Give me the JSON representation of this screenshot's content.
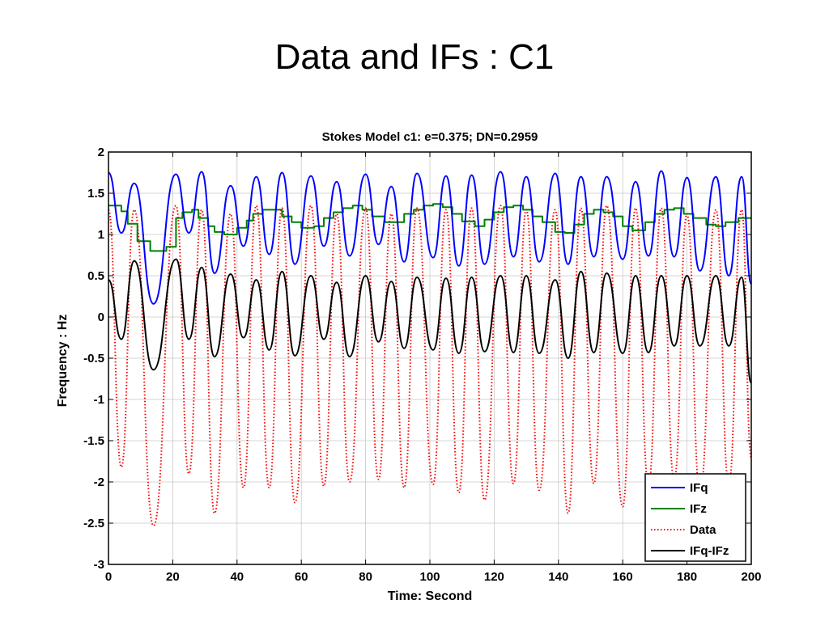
{
  "slide": {
    "title": "Data and IFs : C1"
  },
  "chart_data": {
    "type": "line",
    "title": "Stokes Model c1:  e=0.375;  DN=0.2959",
    "xlabel": "Time: Second",
    "ylabel": "Frequency : Hz",
    "xlim": [
      0,
      200
    ],
    "ylim": [
      -3,
      2
    ],
    "xticks": [
      0,
      20,
      40,
      60,
      80,
      100,
      120,
      140,
      160,
      180,
      200
    ],
    "yticks": [
      -3,
      -2.5,
      -2,
      -1.5,
      -1,
      -0.5,
      0,
      0.5,
      1,
      1.5,
      2
    ],
    "ytick_labels": [
      "-3",
      "-2.5",
      "-2",
      "-1.5",
      "-1",
      "-0.5",
      "0",
      "0.5",
      "1",
      "1.5",
      "2"
    ],
    "grid": true,
    "legend_position": "bottom-right",
    "series": [
      {
        "name": "IFq",
        "color": "#0000ff",
        "style": "solid",
        "x": [
          0,
          4,
          8,
          14,
          21,
          25,
          29,
          33,
          38,
          42,
          46,
          50,
          54,
          58,
          63,
          67,
          71,
          75,
          80,
          84,
          88,
          92,
          96,
          101,
          105,
          109,
          113,
          117,
          122,
          126,
          130,
          134,
          139,
          143,
          147,
          151,
          155,
          160,
          164,
          168,
          172,
          176,
          180,
          184,
          189,
          193,
          197,
          200
        ],
        "y": [
          1.75,
          1.02,
          1.62,
          0.16,
          1.73,
          1.02,
          1.76,
          0.53,
          1.59,
          0.86,
          1.7,
          0.76,
          1.75,
          0.64,
          1.71,
          0.86,
          1.64,
          0.74,
          1.73,
          0.88,
          1.58,
          0.67,
          1.74,
          0.72,
          1.71,
          0.62,
          1.72,
          0.64,
          1.76,
          0.73,
          1.7,
          0.67,
          1.74,
          0.64,
          1.7,
          0.73,
          1.7,
          0.7,
          1.64,
          0.74,
          1.77,
          0.73,
          1.69,
          0.56,
          1.7,
          0.5,
          1.7,
          0.4
        ]
      },
      {
        "name": "IFz",
        "color": "#008000",
        "style": "step",
        "x": [
          0,
          4,
          6,
          9,
          13,
          18,
          21,
          23,
          26,
          28,
          31,
          33,
          36,
          40,
          43,
          45,
          48,
          51,
          54,
          57,
          60,
          64,
          67,
          70,
          73,
          76,
          79,
          82,
          86,
          89,
          92,
          95,
          98,
          101,
          104,
          107,
          110,
          114,
          117,
          120,
          123,
          126,
          129,
          132,
          135,
          139,
          142,
          145,
          148,
          151,
          154,
          157,
          160,
          163,
          167,
          170,
          173,
          176,
          179,
          182,
          186,
          189,
          192,
          196,
          200
        ],
        "y": [
          1.35,
          1.28,
          1.13,
          0.92,
          0.8,
          0.85,
          1.2,
          1.27,
          1.3,
          1.2,
          1.1,
          1.03,
          1.0,
          1.08,
          1.17,
          1.25,
          1.3,
          1.3,
          1.22,
          1.15,
          1.08,
          1.1,
          1.2,
          1.27,
          1.32,
          1.35,
          1.3,
          1.22,
          1.15,
          1.15,
          1.25,
          1.3,
          1.35,
          1.37,
          1.33,
          1.25,
          1.16,
          1.1,
          1.18,
          1.27,
          1.33,
          1.35,
          1.3,
          1.22,
          1.15,
          1.03,
          1.02,
          1.12,
          1.25,
          1.3,
          1.27,
          1.22,
          1.1,
          1.05,
          1.15,
          1.25,
          1.3,
          1.32,
          1.25,
          1.2,
          1.12,
          1.1,
          1.15,
          1.2,
          1.2
        ]
      },
      {
        "name": "Data",
        "color": "#ff0000",
        "style": "dotted",
        "x": [
          0,
          4,
          8,
          14,
          21,
          25,
          29,
          33,
          38,
          42,
          46,
          50,
          54,
          58,
          63,
          67,
          71,
          75,
          80,
          84,
          88,
          92,
          96,
          101,
          105,
          109,
          113,
          117,
          122,
          126,
          130,
          134,
          139,
          143,
          147,
          151,
          155,
          160,
          164,
          168,
          172,
          176,
          180,
          184,
          189,
          193,
          197,
          200
        ],
        "y": [
          1.3,
          -1.82,
          1.3,
          -2.53,
          1.35,
          -1.9,
          1.3,
          -2.38,
          1.25,
          -2.07,
          1.35,
          -2.07,
          1.32,
          -2.25,
          1.35,
          -2.05,
          1.25,
          -2.0,
          1.32,
          -1.97,
          1.25,
          -2.07,
          1.32,
          -2.03,
          1.3,
          -2.13,
          1.32,
          -2.22,
          1.35,
          -2.02,
          1.3,
          -2.1,
          1.3,
          -2.38,
          1.32,
          -2.02,
          1.35,
          -2.3,
          1.32,
          -2.05,
          1.32,
          -1.98,
          1.25,
          -2.13,
          1.3,
          -2.03,
          1.3,
          -1.7
        ]
      },
      {
        "name": "IFq-IFz",
        "color": "#000000",
        "style": "solid",
        "x": [
          0,
          4,
          8,
          14,
          21,
          25,
          29,
          33,
          38,
          42,
          46,
          50,
          54,
          58,
          63,
          67,
          71,
          75,
          80,
          84,
          88,
          92,
          96,
          101,
          105,
          109,
          113,
          117,
          122,
          126,
          130,
          134,
          139,
          143,
          147,
          151,
          155,
          160,
          164,
          168,
          172,
          176,
          180,
          184,
          189,
          193,
          197,
          200
        ],
        "y": [
          0.45,
          -0.27,
          0.68,
          -0.64,
          0.7,
          -0.27,
          0.6,
          -0.48,
          0.52,
          -0.25,
          0.45,
          -0.4,
          0.55,
          -0.47,
          0.5,
          -0.27,
          0.42,
          -0.48,
          0.5,
          -0.3,
          0.43,
          -0.38,
          0.48,
          -0.4,
          0.47,
          -0.44,
          0.48,
          -0.42,
          0.5,
          -0.43,
          0.5,
          -0.44,
          0.45,
          -0.5,
          0.55,
          -0.43,
          0.53,
          -0.44,
          0.5,
          -0.43,
          0.5,
          -0.35,
          0.5,
          -0.35,
          0.5,
          -0.35,
          0.48,
          -0.8
        ]
      }
    ]
  }
}
